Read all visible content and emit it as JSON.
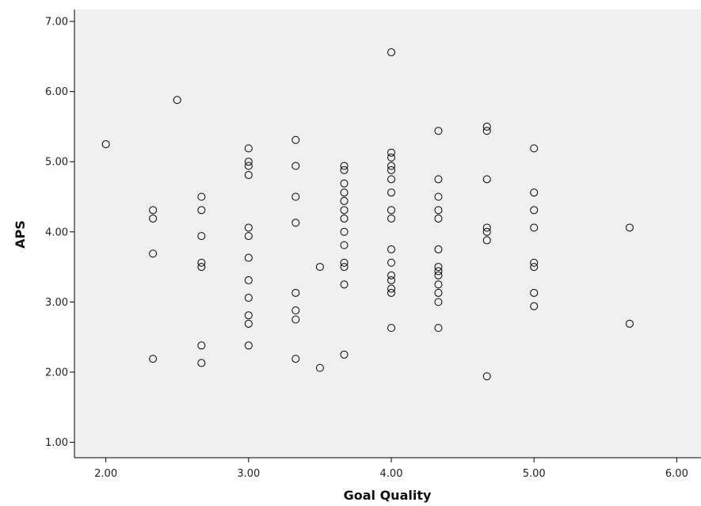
{
  "chart_data": {
    "type": "scatter",
    "title": "",
    "xlabel": "Goal Quality",
    "ylabel": "APS",
    "xlim": [
      1.78,
      6.17
    ],
    "ylim": [
      0.78,
      7.17
    ],
    "xticks": [
      2.0,
      3.0,
      4.0,
      5.0,
      6.0
    ],
    "xtick_labels": [
      "2.00",
      "3.00",
      "4.00",
      "5.00",
      "6.00"
    ],
    "yticks": [
      1.0,
      2.0,
      3.0,
      4.0,
      5.0,
      6.0,
      7.0
    ],
    "ytick_labels": [
      "1.00",
      "2.00",
      "3.00",
      "4.00",
      "5.00",
      "6.00",
      "7.00"
    ],
    "grid": false,
    "plot_background": "#f0f0f0",
    "marker": "open-circle",
    "marker_color": "#000000",
    "series": [
      {
        "points": [
          [
            2.0,
            5.25
          ],
          [
            2.33,
            4.31
          ],
          [
            2.33,
            4.19
          ],
          [
            2.33,
            3.69
          ],
          [
            2.33,
            2.19
          ],
          [
            2.5,
            5.88
          ],
          [
            2.67,
            4.5
          ],
          [
            2.67,
            4.31
          ],
          [
            2.67,
            3.94
          ],
          [
            2.67,
            3.56
          ],
          [
            2.67,
            3.5
          ],
          [
            2.67,
            2.38
          ],
          [
            2.67,
            2.13
          ],
          [
            3.0,
            5.19
          ],
          [
            3.0,
            5.0
          ],
          [
            3.0,
            4.94
          ],
          [
            3.0,
            4.81
          ],
          [
            3.0,
            4.06
          ],
          [
            3.0,
            3.94
          ],
          [
            3.0,
            3.63
          ],
          [
            3.0,
            3.31
          ],
          [
            3.0,
            3.06
          ],
          [
            3.0,
            2.81
          ],
          [
            3.0,
            2.69
          ],
          [
            3.0,
            2.38
          ],
          [
            3.33,
            5.31
          ],
          [
            3.33,
            4.94
          ],
          [
            3.33,
            4.5
          ],
          [
            3.33,
            4.13
          ],
          [
            3.33,
            3.13
          ],
          [
            3.33,
            2.88
          ],
          [
            3.33,
            2.75
          ],
          [
            3.33,
            2.19
          ],
          [
            3.5,
            3.5
          ],
          [
            3.5,
            2.06
          ],
          [
            3.67,
            4.94
          ],
          [
            3.67,
            4.88
          ],
          [
            3.67,
            4.69
          ],
          [
            3.67,
            4.56
          ],
          [
            3.67,
            4.44
          ],
          [
            3.67,
            4.31
          ],
          [
            3.67,
            4.19
          ],
          [
            3.67,
            4.0
          ],
          [
            3.67,
            3.81
          ],
          [
            3.67,
            3.56
          ],
          [
            3.67,
            3.5
          ],
          [
            3.67,
            3.25
          ],
          [
            3.67,
            2.25
          ],
          [
            4.0,
            6.56
          ],
          [
            4.0,
            5.13
          ],
          [
            4.0,
            5.06
          ],
          [
            4.0,
            4.94
          ],
          [
            4.0,
            4.88
          ],
          [
            4.0,
            4.75
          ],
          [
            4.0,
            4.56
          ],
          [
            4.0,
            4.31
          ],
          [
            4.0,
            4.19
          ],
          [
            4.0,
            3.75
          ],
          [
            4.0,
            3.56
          ],
          [
            4.0,
            3.38
          ],
          [
            4.0,
            3.31
          ],
          [
            4.0,
            3.19
          ],
          [
            4.0,
            3.13
          ],
          [
            4.0,
            2.63
          ],
          [
            4.33,
            5.44
          ],
          [
            4.33,
            4.75
          ],
          [
            4.33,
            4.5
          ],
          [
            4.33,
            4.31
          ],
          [
            4.33,
            4.19
          ],
          [
            4.33,
            3.75
          ],
          [
            4.33,
            3.5
          ],
          [
            4.33,
            3.44
          ],
          [
            4.33,
            3.38
          ],
          [
            4.33,
            3.25
          ],
          [
            4.33,
            3.13
          ],
          [
            4.33,
            3.0
          ],
          [
            4.33,
            2.63
          ],
          [
            4.67,
            5.5
          ],
          [
            4.67,
            5.44
          ],
          [
            4.67,
            4.75
          ],
          [
            4.67,
            4.06
          ],
          [
            4.67,
            4.0
          ],
          [
            4.67,
            3.88
          ],
          [
            4.67,
            1.94
          ],
          [
            5.0,
            5.19
          ],
          [
            5.0,
            4.56
          ],
          [
            5.0,
            4.31
          ],
          [
            5.0,
            4.06
          ],
          [
            5.0,
            3.56
          ],
          [
            5.0,
            3.5
          ],
          [
            5.0,
            3.13
          ],
          [
            5.0,
            2.94
          ],
          [
            5.67,
            4.06
          ],
          [
            5.67,
            2.69
          ]
        ]
      }
    ]
  }
}
